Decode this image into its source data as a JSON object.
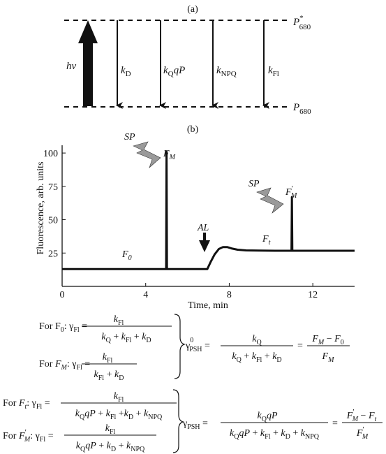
{
  "panel_a": {
    "label": "(a)",
    "upper_level": {
      "main": "P",
      "sup": "*",
      "sub": "680"
    },
    "lower_level": {
      "main": "P",
      "sub": "680"
    },
    "excitation": "hv",
    "rates": [
      {
        "main": "k",
        "sub": "D",
        "suffix": ""
      },
      {
        "main": "k",
        "sub": "Q",
        "suffix": "qP"
      },
      {
        "main": "k",
        "sub": "NPQ",
        "suffix": ""
      },
      {
        "main": "k",
        "sub": "Fl",
        "suffix": ""
      }
    ]
  },
  "panel_b": {
    "label": "(b)",
    "chart_data": {
      "type": "line",
      "xlabel": "Time, min",
      "ylabel": "Fluorescence, arb. units",
      "xlim": [
        0,
        14
      ],
      "ylim": [
        0,
        110
      ],
      "x_ticks": [
        "0",
        "4",
        "8",
        "12"
      ],
      "x_tick_values": [
        0,
        4,
        8,
        12
      ],
      "y_ticks": [
        "25",
        "50",
        "75",
        "100"
      ],
      "y_tick_values": [
        25,
        50,
        75,
        100
      ],
      "series": [
        {
          "x": [
            0,
            4.98,
            5.0,
            5.02,
            6.95,
            7.1,
            7.3,
            7.5,
            7.7,
            7.9,
            8.1,
            8.4,
            8.8,
            9.4,
            10.2,
            10.98,
            11.0,
            11.02,
            12.0,
            14.0
          ],
          "y": [
            13,
            13,
            101,
            13,
            13,
            18,
            24,
            28,
            29.5,
            29.5,
            28.5,
            27.5,
            27,
            26.8,
            26.7,
            26.7,
            67,
            26.7,
            26.7,
            26.7
          ]
        }
      ],
      "annotations": [
        {
          "text": "SP",
          "x": 4.0,
          "y": 108
        },
        {
          "text": "F",
          "sub": "M",
          "x": 5.0,
          "y": 101
        },
        {
          "text": "AL",
          "x": 6.9,
          "y": 40
        },
        {
          "text": "F",
          "sub": "0",
          "x": 3.2,
          "y": 20
        },
        {
          "text": "SP",
          "x": 9.7,
          "y": 74
        },
        {
          "text": "F",
          "sub": "M",
          "prime": "′",
          "x": 11.0,
          "y": 67
        },
        {
          "text": "F",
          "sub": "t",
          "x": 10.0,
          "y": 33
        }
      ]
    }
  },
  "equations": {
    "f0_left": "For F",
    "f0_sub": "0",
    "gamma": "γ",
    "gamma_sub": "Fl",
    "f0_num": "k",
    "f0_num_sub": "Fl",
    "f0_den": "k_Q + k_Fl + k_D",
    "fm_left": "For F",
    "fm_sub": "M",
    "fm_den": "k_Fl + k_D",
    "psh0": "γ",
    "psh0_sub": "PSH",
    "psh0_sup": "0",
    "psh0_num": "k_Q",
    "psh0_den": "k_Q + k_Fl + k_D",
    "psh0_rhs_num": "F_M − F_0",
    "psh0_rhs_den": "F_M",
    "ft_left": "For F",
    "ft_sub": "t",
    "ft_den": "k_Q qP + k_Fl + k_D + k_NPQ",
    "fmp_left": "For F",
    "fmp_sub": "M",
    "fmp_den": "k_Q qP + k_D + k_NPQ",
    "psh_num": "k_Q qP",
    "psh_den": "k_Q qP + k_Fl + k_D + k_NPQ",
    "psh_rhs_num": "F′_M − F_t",
    "psh_rhs_den": "F′_M"
  }
}
